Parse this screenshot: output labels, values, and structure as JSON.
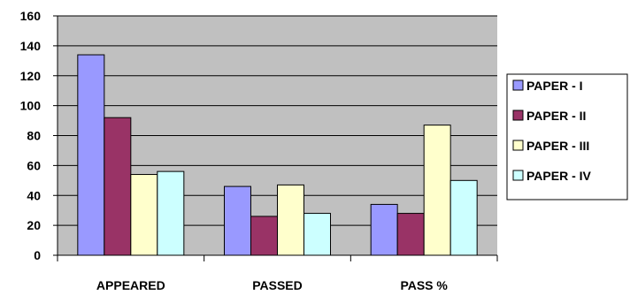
{
  "chart_data": {
    "type": "bar",
    "title": "",
    "xlabel": "",
    "ylabel": "",
    "categories": [
      "APPEARED",
      "PASSED",
      "PASS %"
    ],
    "ylim": [
      0,
      160
    ],
    "yticks": [
      0,
      20,
      40,
      60,
      80,
      100,
      120,
      140,
      160
    ],
    "grid": true,
    "legend_position": "right",
    "plot_background": "#c0c0c0",
    "series": [
      {
        "name": "PAPER - I",
        "color": "#9999ff",
        "values": [
          134,
          46,
          34
        ]
      },
      {
        "name": "PAPER - II",
        "color": "#993366",
        "values": [
          92,
          26,
          28
        ]
      },
      {
        "name": "PAPER - III",
        "color": "#ffffcc",
        "values": [
          54,
          47,
          87
        ]
      },
      {
        "name": "PAPER - IV",
        "color": "#ccffff",
        "values": [
          56,
          28,
          50
        ]
      }
    ]
  }
}
